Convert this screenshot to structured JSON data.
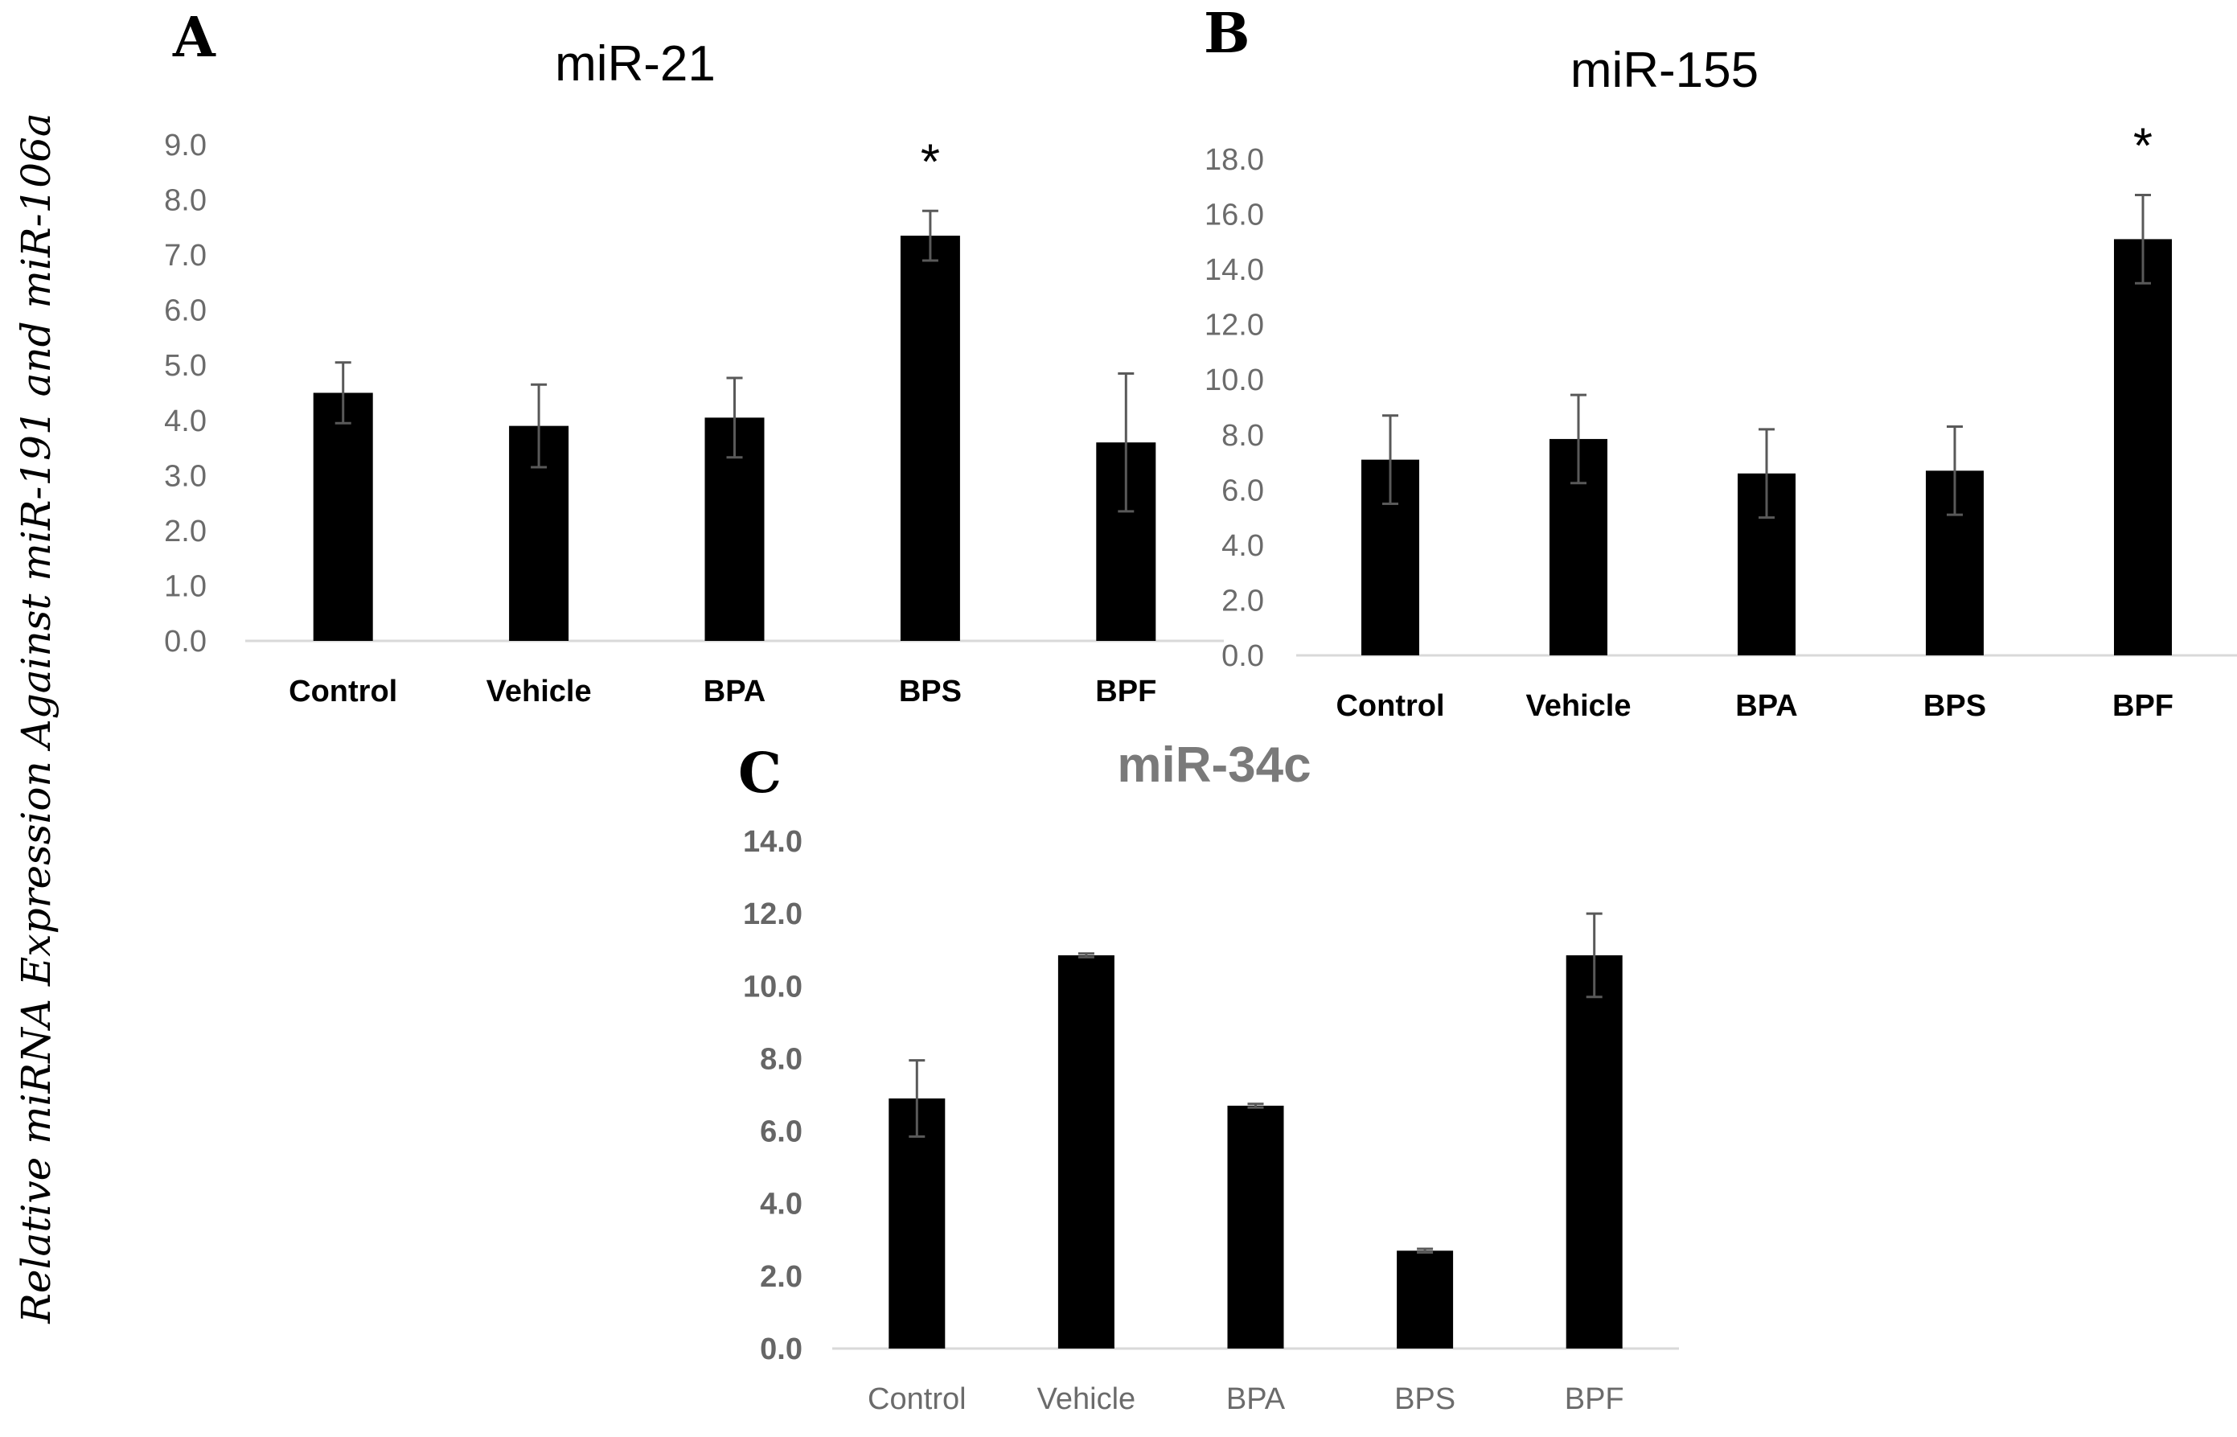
{
  "figure": {
    "ylabel": "Relative miRNA Expression Against miR-191 and miR-106a"
  },
  "colors": {
    "bar": "#000000",
    "error_bar": "#595959",
    "axis": "#d9d9d9",
    "gray_title": "#7a7a7a"
  },
  "chart_data": [
    {
      "panel": "A",
      "type": "bar",
      "title": "miR-21",
      "categories": [
        "Control",
        "Vehicle",
        "BPA",
        "BPS",
        "BPF"
      ],
      "values": [
        4.5,
        3.9,
        4.05,
        7.35,
        3.6
      ],
      "errors": [
        0.55,
        0.75,
        0.72,
        0.45,
        1.25
      ],
      "significance": [
        "",
        "",
        "",
        "*",
        ""
      ],
      "yticks": [
        "0.0",
        "1.0",
        "2.0",
        "3.0",
        "4.0",
        "5.0",
        "6.0",
        "7.0",
        "8.0",
        "9.0"
      ],
      "ylim": [
        0,
        9
      ],
      "xlabel": "",
      "ylabel": ""
    },
    {
      "panel": "B",
      "type": "bar",
      "title": "miR-155",
      "categories": [
        "Control",
        "Vehicle",
        "BPA",
        "BPS",
        "BPF"
      ],
      "values": [
        7.1,
        7.85,
        6.6,
        6.7,
        15.1
      ],
      "errors": [
        1.6,
        1.6,
        1.6,
        1.6,
        1.6
      ],
      "significance": [
        "",
        "",
        "",
        "",
        "*"
      ],
      "yticks": [
        "0.0",
        "2.0",
        "4.0",
        "6.0",
        "8.0",
        "10.0",
        "12.0",
        "14.0",
        "16.0",
        "18.0"
      ],
      "ylim": [
        0,
        18
      ],
      "xlabel": "",
      "ylabel": ""
    },
    {
      "panel": "C",
      "type": "bar",
      "title": "miR-34c",
      "categories": [
        "Control",
        "Vehicle",
        "BPA",
        "BPS",
        "BPF"
      ],
      "values": [
        6.9,
        10.85,
        6.7,
        2.7,
        10.85
      ],
      "errors": [
        1.05,
        0.05,
        0.05,
        0.05,
        1.15
      ],
      "significance": [
        "",
        "",
        "",
        "",
        ""
      ],
      "yticks": [
        "0.0",
        "2.0",
        "4.0",
        "6.0",
        "8.0",
        "10.0",
        "12.0",
        "14.0"
      ],
      "ylim": [
        0,
        14
      ],
      "xlabel": "",
      "ylabel": ""
    }
  ]
}
